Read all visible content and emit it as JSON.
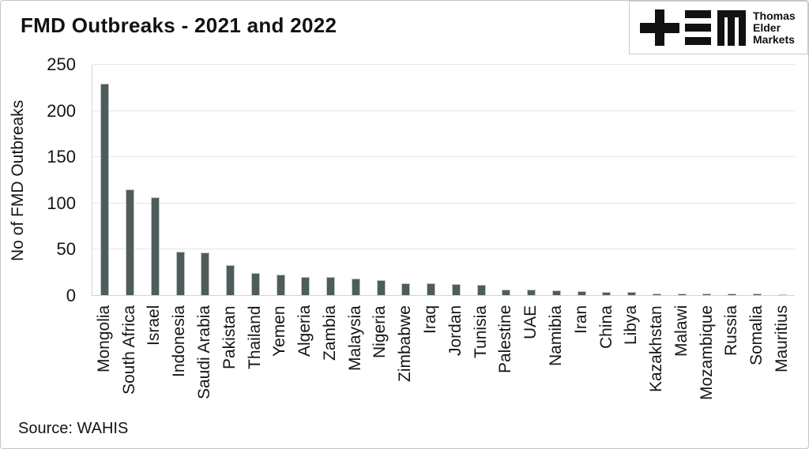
{
  "title": "FMD Outbreaks - 2021 and 2022",
  "source": "Source: WAHIS",
  "logo": {
    "icon": "tem-logo-icon",
    "lines": [
      "Thomas",
      "Elder",
      "Markets"
    ],
    "color": "#111111"
  },
  "chart_data": {
    "type": "bar",
    "title": "FMD Outbreaks - 2021 and 2022",
    "xlabel": "",
    "ylabel": "No of FMD Outbreaks",
    "ylim": [
      0,
      250
    ],
    "yticks": [
      0,
      50,
      100,
      150,
      200,
      250
    ],
    "grid": true,
    "legend": "none",
    "bar_color": "#4e5d5c",
    "bar_edge_color": "#bcc5c4",
    "categories": [
      "Mongolia",
      "South Africa",
      "Israel",
      "Indonesia",
      "Saudi Arabia",
      "Pakistan",
      "Thailand",
      "Yemen",
      "Algeria",
      "Zambia",
      "Malaysia",
      "Nigeria",
      "Zimbabwe",
      "Iraq",
      "Jordan",
      "Tunisia",
      "Palestine",
      "UAE",
      "Namibia",
      "Iran",
      "China",
      "Libya",
      "Kazakhstan",
      "Malawi",
      "Mozambique",
      "Russia",
      "Somalia",
      "Mauritius"
    ],
    "values": [
      229,
      114,
      106,
      47,
      46,
      32,
      24,
      22,
      20,
      20,
      18,
      16,
      13,
      13,
      12,
      11,
      6,
      6,
      5,
      4,
      3,
      3,
      2,
      2,
      2,
      2,
      2,
      1
    ],
    "source_label": "Source: WAHIS"
  }
}
